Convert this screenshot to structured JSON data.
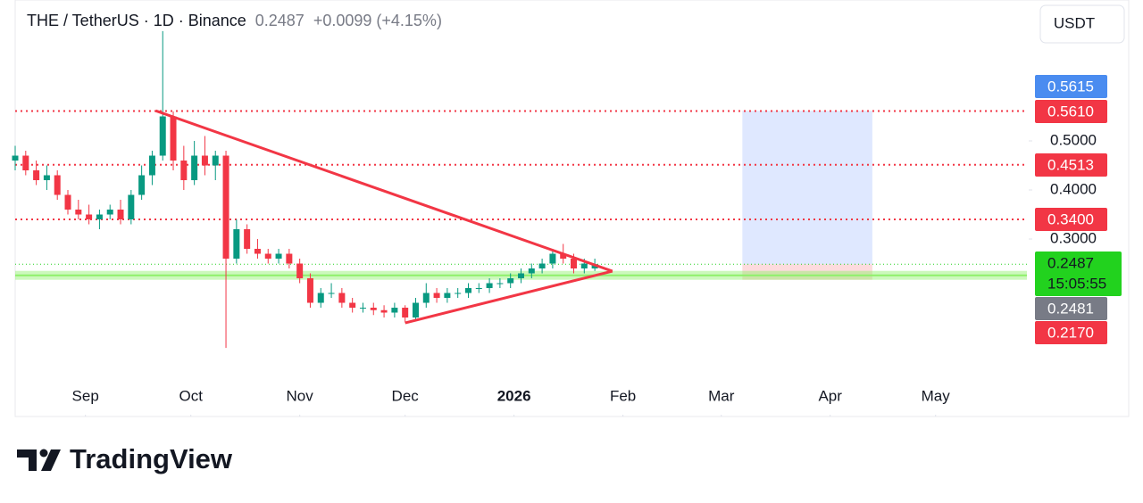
{
  "chart_data": {
    "type": "candlestick",
    "title": "THE / TetherUS · 1D · Binance",
    "header_price": "0.2487",
    "change": "+0.0099 (+4.15%)",
    "currency": "USDT",
    "brand": "TradingView",
    "up_color": "#089981",
    "down_color": "#f23645",
    "xlim": [
      "2025-08-12",
      "2026-05-27"
    ],
    "ylim": [
      -0.0618,
      0.7873
    ],
    "yticks": [
      {
        "value": 0.3,
        "label": "0.3000"
      },
      {
        "value": 0.4,
        "label": "0.4000"
      },
      {
        "value": 0.5,
        "label": "0.5000"
      }
    ],
    "xticks": [
      {
        "value": "2025-09-01",
        "label": "Sep"
      },
      {
        "value": "2025-10-01",
        "label": "Oct"
      },
      {
        "value": "2025-11-01",
        "label": "Nov"
      },
      {
        "value": "2025-12-01",
        "label": "Dec"
      },
      {
        "value": "2026-01-01",
        "label": "2026"
      },
      {
        "value": "2026-02-01",
        "label": "Feb"
      },
      {
        "value": "2026-03-01",
        "label": "Mar"
      },
      {
        "value": "2026-04-01",
        "label": "Apr"
      },
      {
        "value": "2026-05-01",
        "label": "May"
      }
    ],
    "x": [
      "2025-08-12",
      "2025-08-15",
      "2025-08-18",
      "2025-08-21",
      "2025-08-24",
      "2025-08-27",
      "2025-08-30",
      "2025-09-02",
      "2025-09-05",
      "2025-09-08",
      "2025-09-11",
      "2025-09-14",
      "2025-09-17",
      "2025-09-20",
      "2025-09-23",
      "2025-09-26",
      "2025-09-29",
      "2025-10-02",
      "2025-10-05",
      "2025-10-08",
      "2025-10-11",
      "2025-10-14",
      "2025-10-17",
      "2025-10-20",
      "2025-10-23",
      "2025-10-26",
      "2025-10-29",
      "2025-11-01",
      "2025-11-04",
      "2025-11-07",
      "2025-11-10",
      "2025-11-13",
      "2025-11-16",
      "2025-11-19",
      "2025-11-22",
      "2025-11-25",
      "2025-11-28",
      "2025-12-01",
      "2025-12-04",
      "2025-12-07",
      "2025-12-10",
      "2025-12-13",
      "2025-12-16",
      "2025-12-19",
      "2025-12-22",
      "2025-12-25",
      "2025-12-28",
      "2025-12-31",
      "2026-01-03",
      "2026-01-06",
      "2026-01-09",
      "2026-01-12",
      "2026-01-15",
      "2026-01-18",
      "2026-01-21",
      "2026-01-24"
    ],
    "candles": [
      [
        0.46,
        0.49,
        0.44,
        0.47
      ],
      [
        0.47,
        0.48,
        0.43,
        0.44
      ],
      [
        0.44,
        0.46,
        0.41,
        0.42
      ],
      [
        0.42,
        0.45,
        0.4,
        0.43
      ],
      [
        0.43,
        0.44,
        0.38,
        0.39
      ],
      [
        0.39,
        0.4,
        0.35,
        0.36
      ],
      [
        0.36,
        0.38,
        0.34,
        0.35
      ],
      [
        0.35,
        0.37,
        0.33,
        0.34
      ],
      [
        0.34,
        0.36,
        0.32,
        0.35
      ],
      [
        0.35,
        0.37,
        0.34,
        0.36
      ],
      [
        0.36,
        0.38,
        0.33,
        0.34
      ],
      [
        0.34,
        0.4,
        0.33,
        0.39
      ],
      [
        0.39,
        0.45,
        0.38,
        0.43
      ],
      [
        0.43,
        0.48,
        0.41,
        0.47
      ],
      [
        0.47,
        0.724,
        0.46,
        0.55
      ],
      [
        0.55,
        0.56,
        0.44,
        0.46
      ],
      [
        0.46,
        0.49,
        0.4,
        0.42
      ],
      [
        0.42,
        0.5,
        0.41,
        0.47
      ],
      [
        0.47,
        0.51,
        0.43,
        0.45
      ],
      [
        0.45,
        0.48,
        0.42,
        0.47
      ],
      [
        0.47,
        0.48,
        0.078,
        0.26
      ],
      [
        0.26,
        0.34,
        0.25,
        0.32
      ],
      [
        0.32,
        0.33,
        0.27,
        0.28
      ],
      [
        0.28,
        0.3,
        0.26,
        0.27
      ],
      [
        0.27,
        0.28,
        0.25,
        0.26
      ],
      [
        0.26,
        0.28,
        0.25,
        0.27
      ],
      [
        0.27,
        0.28,
        0.24,
        0.25
      ],
      [
        0.25,
        0.26,
        0.21,
        0.22
      ],
      [
        0.22,
        0.23,
        0.16,
        0.17
      ],
      [
        0.17,
        0.2,
        0.16,
        0.19
      ],
      [
        0.19,
        0.21,
        0.18,
        0.19
      ],
      [
        0.19,
        0.2,
        0.16,
        0.17
      ],
      [
        0.17,
        0.18,
        0.15,
        0.16
      ],
      [
        0.16,
        0.17,
        0.15,
        0.16
      ],
      [
        0.16,
        0.17,
        0.145,
        0.155
      ],
      [
        0.155,
        0.165,
        0.14,
        0.15
      ],
      [
        0.15,
        0.17,
        0.14,
        0.16
      ],
      [
        0.16,
        0.165,
        0.13,
        0.14
      ],
      [
        0.14,
        0.18,
        0.135,
        0.17
      ],
      [
        0.17,
        0.21,
        0.16,
        0.19
      ],
      [
        0.19,
        0.2,
        0.17,
        0.18
      ],
      [
        0.18,
        0.2,
        0.17,
        0.19
      ],
      [
        0.19,
        0.2,
        0.18,
        0.19
      ],
      [
        0.19,
        0.21,
        0.18,
        0.2
      ],
      [
        0.2,
        0.21,
        0.19,
        0.2
      ],
      [
        0.2,
        0.22,
        0.19,
        0.21
      ],
      [
        0.21,
        0.22,
        0.2,
        0.21
      ],
      [
        0.21,
        0.23,
        0.2,
        0.22
      ],
      [
        0.22,
        0.24,
        0.21,
        0.23
      ],
      [
        0.23,
        0.25,
        0.22,
        0.24
      ],
      [
        0.24,
        0.26,
        0.23,
        0.25
      ],
      [
        0.25,
        0.28,
        0.24,
        0.27
      ],
      [
        0.27,
        0.29,
        0.25,
        0.26
      ],
      [
        0.26,
        0.27,
        0.23,
        0.24
      ],
      [
        0.24,
        0.26,
        0.23,
        0.25
      ],
      [
        0.24,
        0.26,
        0.235,
        0.2487
      ]
    ],
    "levels": [
      {
        "value": 0.561,
        "label": "0.5610",
        "color": "#f23645"
      },
      {
        "value": 0.4513,
        "label": "0.4513",
        "color": "#f23645"
      },
      {
        "value": 0.34,
        "label": "0.3400",
        "color": "#f23645"
      }
    ],
    "support_level": 0.226,
    "support_color": "#8ef06a",
    "trendlines": [
      {
        "color": "#f23645",
        "points": [
          [
            "2025-09-21",
            0.5615
          ],
          [
            "2026-01-29",
            0.2345
          ]
        ]
      },
      {
        "color": "#f23645",
        "points": [
          [
            "2025-12-01",
            0.129
          ],
          [
            "2026-01-29",
            0.2345
          ]
        ]
      }
    ],
    "position": {
      "start": "2026-03-07",
      "end": "2026-04-13",
      "target": {
        "value": 0.5615,
        "label": "0.5615"
      },
      "stop": {
        "value": 0.217,
        "label": "0.2170"
      },
      "entry": 0.2487,
      "target_color": "#2962ff",
      "stop_color": "#f23645"
    },
    "last_price": {
      "value": 0.2487,
      "label": "0.2487",
      "color": "#22d21e"
    },
    "countdown": "15:05:55",
    "other_price": {
      "value": 0.2481,
      "label": "0.2481",
      "color": "#787b86"
    }
  }
}
